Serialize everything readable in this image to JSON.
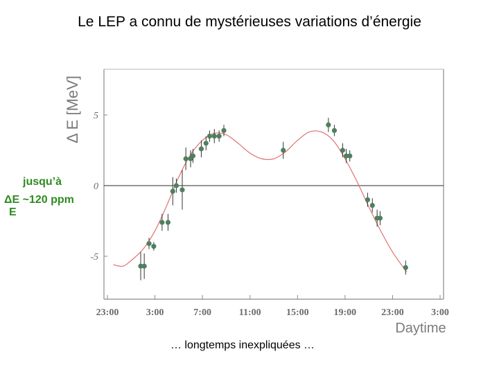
{
  "slide": {
    "title": "Le LEP a connu de mystérieuses variations d’énergie",
    "caption": "… longtemps inexpliquées …"
  },
  "annotation": {
    "line1": "jusqu’à",
    "line2_num": "ΔE",
    "line2_rest": "~120 ppm",
    "line3_den": "E",
    "color": "#2e8b20"
  },
  "colors": {
    "points": "#4f7f5f",
    "curve": "#e07070",
    "axis": "#555555"
  },
  "chart_data": {
    "type": "scatter",
    "title": "",
    "xlabel": "Daytime",
    "ylabel": "Δ E [MeV]",
    "xlim": [
      23,
      51
    ],
    "ylim": [
      -8,
      8
    ],
    "x_tick_values": [
      23,
      27,
      31,
      35,
      39,
      43,
      47,
      51
    ],
    "x_tick_labels": [
      "23:00",
      "3:00",
      "7:00",
      "11:00",
      "15:00",
      "19:00",
      "23:00",
      "3:00"
    ],
    "y_tick_values": [
      5,
      0,
      -5
    ],
    "y_tick_labels": [
      "5",
      "0",
      "-5"
    ],
    "reference_line": 0,
    "grid": false,
    "series": [
      {
        "type": "scatter_errorbars",
        "points": [
          {
            "x": 25.8,
            "y": -5.7,
            "err": 1.0
          },
          {
            "x": 26.1,
            "y": -5.7,
            "err": 0.9
          },
          {
            "x": 26.5,
            "y": -4.1,
            "err": 0.4
          },
          {
            "x": 26.9,
            "y": -4.3,
            "err": 0.3
          },
          {
            "x": 27.6,
            "y": -2.6,
            "err": 0.6
          },
          {
            "x": 28.1,
            "y": -2.6,
            "err": 0.6
          },
          {
            "x": 28.5,
            "y": -0.4,
            "err": 1.0
          },
          {
            "x": 28.8,
            "y": 0.0,
            "err": 0.5
          },
          {
            "x": 29.3,
            "y": -0.3,
            "err": 1.4
          },
          {
            "x": 29.6,
            "y": 1.9,
            "err": 0.8
          },
          {
            "x": 30.0,
            "y": 1.9,
            "err": 0.6
          },
          {
            "x": 30.2,
            "y": 2.1,
            "err": 0.5
          },
          {
            "x": 30.9,
            "y": 2.6,
            "err": 0.6
          },
          {
            "x": 31.3,
            "y": 3.0,
            "err": 0.5
          },
          {
            "x": 31.6,
            "y": 3.5,
            "err": 0.4
          },
          {
            "x": 32.0,
            "y": 3.5,
            "err": 0.5
          },
          {
            "x": 32.4,
            "y": 3.5,
            "err": 0.4
          },
          {
            "x": 32.8,
            "y": 3.9,
            "err": 0.4
          },
          {
            "x": 37.8,
            "y": 2.5,
            "err": 0.6
          },
          {
            "x": 41.6,
            "y": 4.3,
            "err": 0.5
          },
          {
            "x": 42.1,
            "y": 3.9,
            "err": 0.4
          },
          {
            "x": 42.8,
            "y": 2.5,
            "err": 0.5
          },
          {
            "x": 43.1,
            "y": 2.1,
            "err": 0.5
          },
          {
            "x": 43.4,
            "y": 2.1,
            "err": 0.4
          },
          {
            "x": 44.9,
            "y": -1.0,
            "err": 0.5
          },
          {
            "x": 45.3,
            "y": -1.4,
            "err": 0.5
          },
          {
            "x": 45.7,
            "y": -2.3,
            "err": 0.6
          },
          {
            "x": 45.95,
            "y": -2.3,
            "err": 0.5
          },
          {
            "x": 48.1,
            "y": -5.8,
            "err": 0.5
          }
        ]
      },
      {
        "type": "fit_curve",
        "points": [
          [
            23.5,
            -5.6
          ],
          [
            24.3,
            -5.7
          ],
          [
            25.0,
            -5.3
          ],
          [
            26.0,
            -4.5
          ],
          [
            27.0,
            -3.2
          ],
          [
            28.0,
            -1.4
          ],
          [
            29.0,
            0.6
          ],
          [
            30.0,
            2.2
          ],
          [
            31.0,
            3.2
          ],
          [
            32.0,
            3.7
          ],
          [
            33.0,
            3.6
          ],
          [
            34.0,
            3.0
          ],
          [
            35.0,
            2.3
          ],
          [
            36.0,
            1.9
          ],
          [
            37.0,
            1.9
          ],
          [
            38.0,
            2.4
          ],
          [
            39.0,
            3.2
          ],
          [
            40.0,
            3.8
          ],
          [
            41.0,
            3.8
          ],
          [
            42.0,
            3.2
          ],
          [
            43.0,
            1.9
          ],
          [
            44.0,
            0.3
          ],
          [
            45.0,
            -1.5
          ],
          [
            46.0,
            -3.2
          ],
          [
            47.0,
            -4.7
          ],
          [
            48.0,
            -5.9
          ],
          [
            48.2,
            -6.1
          ]
        ]
      }
    ]
  }
}
